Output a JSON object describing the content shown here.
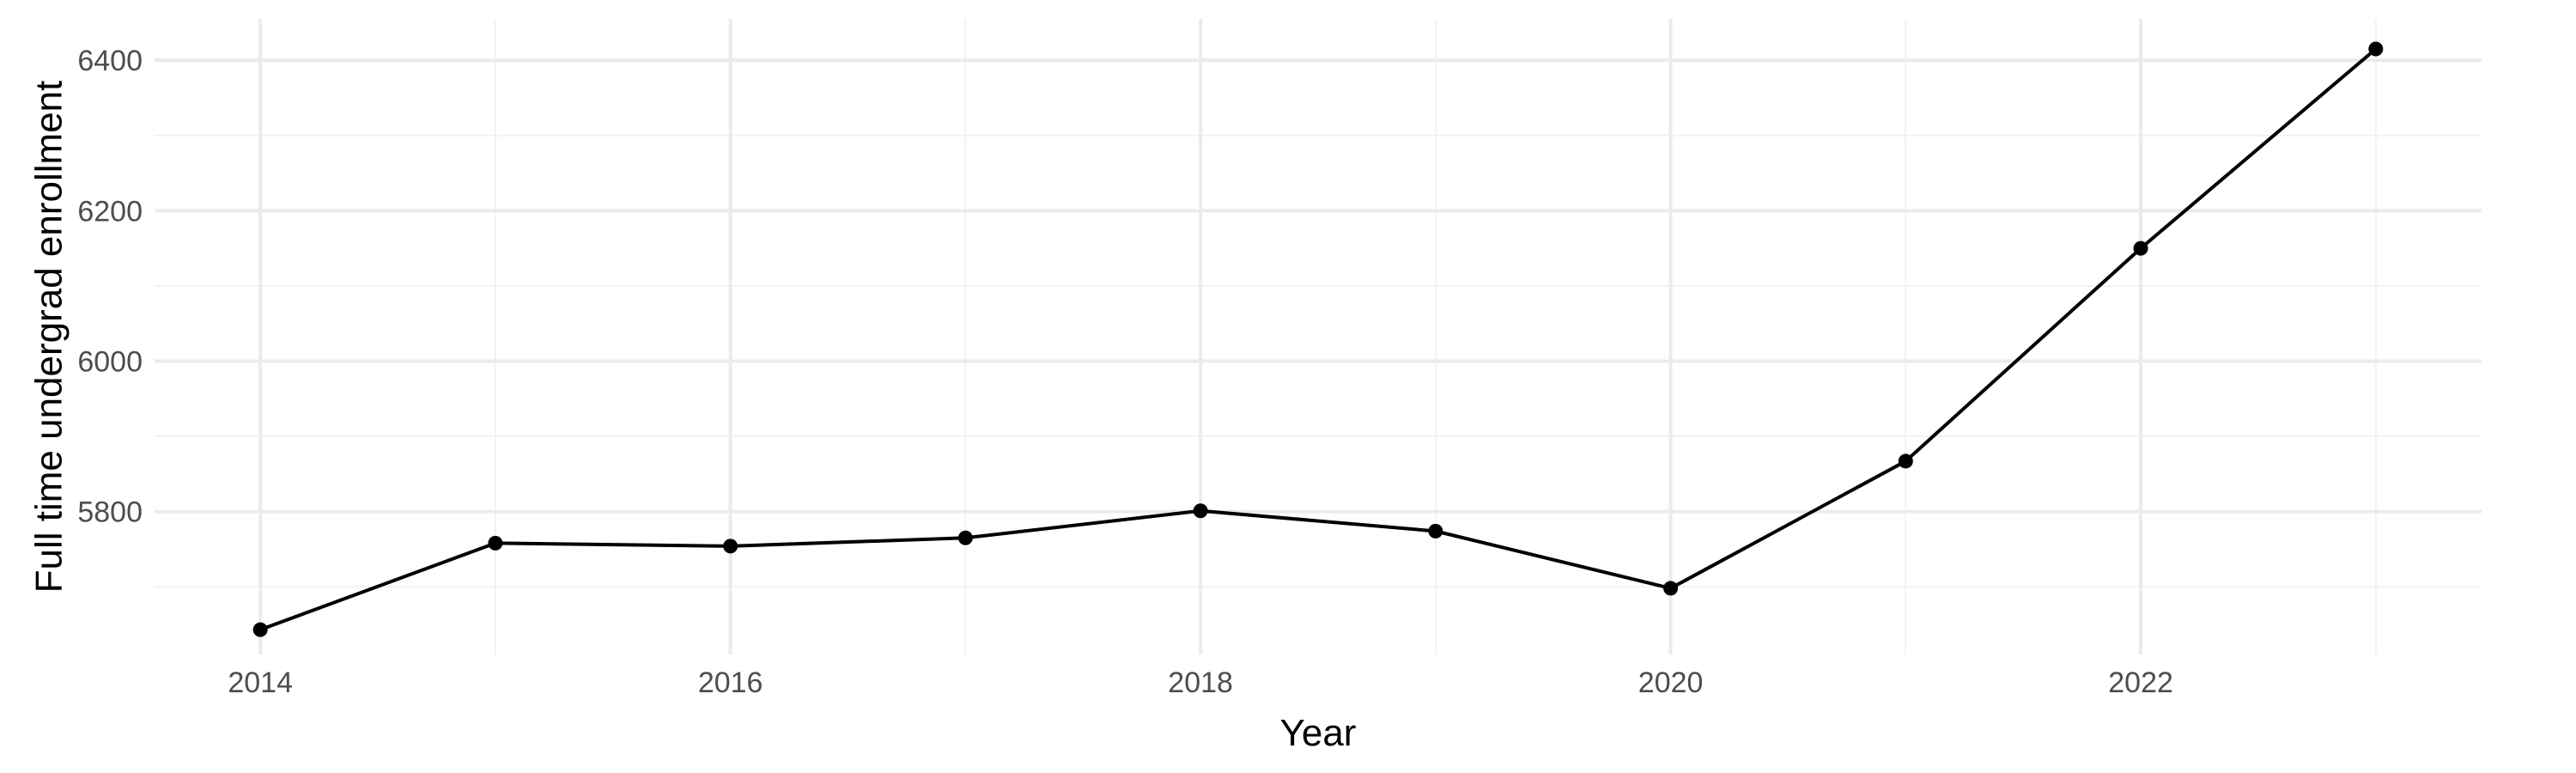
{
  "chart_data": {
    "type": "line",
    "title": "",
    "xlabel": "Year",
    "ylabel": "Full time undergrad enrollment",
    "x": [
      2014,
      2015,
      2016,
      2017,
      2018,
      2019,
      2020,
      2021,
      2022,
      2023
    ],
    "series": [
      {
        "name": "",
        "values": [
          5643,
          5758,
          5754,
          5765,
          5801,
          5774,
          5698,
          5867,
          6150,
          6415
        ]
      }
    ],
    "xlim": [
      2013.55,
      2023.45
    ],
    "ylim": [
      5610,
      6455
    ],
    "x_ticks": [
      2014,
      2016,
      2018,
      2020,
      2022
    ],
    "x_tick_labels": [
      "2014",
      "2016",
      "2018",
      "2020",
      "2022"
    ],
    "y_ticks": [
      5800,
      6000,
      6200,
      6400
    ],
    "y_tick_labels": [
      "5800",
      "6000",
      "6200",
      "6400"
    ],
    "grid": true,
    "legend": "none",
    "colors": {
      "line": "#000000",
      "points": "#000000",
      "grid_major": "#ebebeb",
      "grid_minor": "#f2f2f2",
      "tick_text": "#4d4d4d"
    }
  }
}
